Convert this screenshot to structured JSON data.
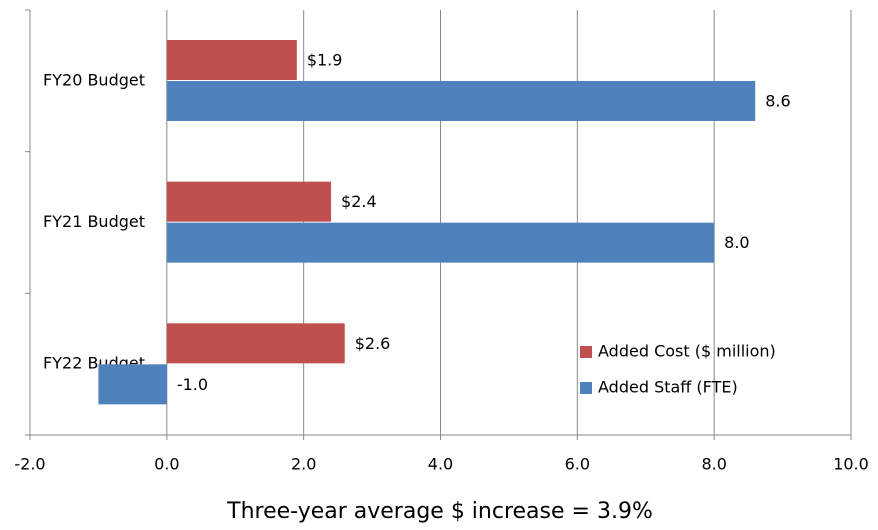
{
  "chart_data": {
    "type": "hbar",
    "x_label": "Three-year average $ increase = 3.9%",
    "categories": [
      "FY20 Budget",
      "FY21 Budget",
      "FY22 Budget"
    ],
    "series": [
      {
        "name": "Added Cost ($ million)",
        "color": "#c0504d",
        "values": [
          1.9,
          2.4,
          2.6
        ],
        "value_labels": [
          "$1.9",
          "$2.4",
          "$2.6"
        ]
      },
      {
        "name": "Added Staff (FTE)",
        "color": "#4f81bd",
        "values": [
          8.6,
          8.0,
          -1.0
        ],
        "value_labels": [
          "8.6",
          "8.0",
          "-1.0"
        ]
      }
    ],
    "xlim": [
      -2,
      10
    ],
    "xticks": [
      {
        "value": -2,
        "label": "-2.0"
      },
      {
        "value": 0,
        "label": "0.0"
      },
      {
        "value": 2,
        "label": "2.0"
      },
      {
        "value": 4,
        "label": "4.0"
      },
      {
        "value": 6,
        "label": "6.0"
      },
      {
        "value": 8,
        "label": "8.0"
      },
      {
        "value": 10,
        "label": "10.0"
      }
    ],
    "grid": true,
    "legend": "lower right"
  }
}
